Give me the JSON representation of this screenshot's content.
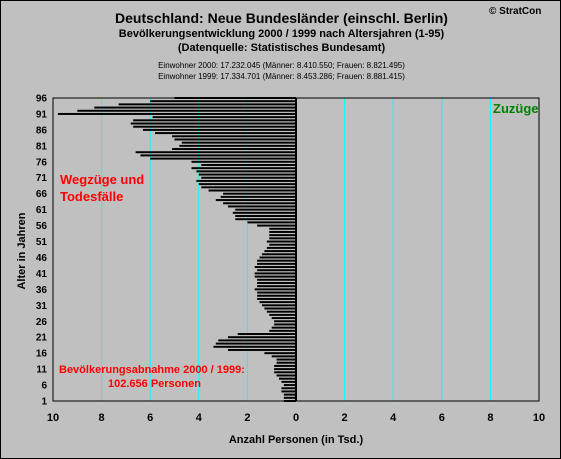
{
  "header": {
    "title": "Deutschland: Neue Bundesländer (einschl. Berlin)",
    "subtitle": "Bevölkerungsentwicklung 2000 / 1999  nach Altersjahren (1-95)",
    "source": "(Datenquelle: Statistisches Bundesamt)",
    "population_2000": "Einwohner 2000: 17.232.045  (Männer: 8.410.550; Frauen: 8.821.495)",
    "population_1999": "Einwohner 1999: 17.334.701  (Männer: 8.453.286; Frauen: 8.881.415)",
    "copyright": "© StratCon"
  },
  "annotations": {
    "left_line1": "Wegzüge und",
    "left_line2": "Todesfälle",
    "right": "Zuzüge",
    "decline_line1": "Bevölkerungsabnahme 2000 / 1999:",
    "decline_line2": "102.656 Personen"
  },
  "colors": {
    "background": "#c0c0c0",
    "bars": "#000000",
    "gridlines": "#00ffff",
    "annotation_red": "#ff0000",
    "annotation_green": "#008000"
  },
  "chart_data": {
    "type": "bar",
    "orientation": "horizontal",
    "xlabel": "Anzahl Personen (in Tsd.)",
    "ylabel": "Alter in Jahren",
    "xlim": [
      -10,
      10
    ],
    "ylim": [
      1,
      96
    ],
    "x_ticks": [
      10,
      8,
      6,
      4,
      2,
      0,
      2,
      4,
      6,
      8,
      10
    ],
    "y_ticks": [
      96,
      91,
      86,
      81,
      76,
      71,
      66,
      61,
      56,
      51,
      46,
      41,
      36,
      31,
      26,
      21,
      16,
      11,
      6,
      1
    ],
    "grid": true,
    "categories": [
      1,
      2,
      3,
      4,
      5,
      6,
      7,
      8,
      9,
      10,
      11,
      12,
      13,
      14,
      15,
      16,
      17,
      18,
      19,
      20,
      21,
      22,
      23,
      24,
      25,
      26,
      27,
      28,
      29,
      30,
      31,
      32,
      33,
      34,
      35,
      36,
      37,
      38,
      39,
      40,
      41,
      42,
      43,
      44,
      45,
      46,
      47,
      48,
      49,
      50,
      51,
      52,
      53,
      54,
      55,
      56,
      57,
      58,
      59,
      60,
      61,
      62,
      63,
      64,
      65,
      66,
      67,
      68,
      69,
      70,
      71,
      72,
      73,
      74,
      75,
      76,
      77,
      78,
      79,
      80,
      81,
      82,
      83,
      84,
      85,
      86,
      87,
      88,
      89,
      90,
      91,
      92,
      93,
      94,
      95,
      96
    ],
    "values": [
      -0.5,
      -0.5,
      -0.5,
      -0.6,
      -0.6,
      -0.5,
      -0.6,
      -0.7,
      -0.8,
      -0.9,
      -0.9,
      -0.9,
      -0.8,
      -0.8,
      -1.0,
      -1.3,
      -2.8,
      -3.4,
      -3.3,
      -3.2,
      -2.8,
      -2.4,
      -1.1,
      -1.0,
      -0.9,
      -0.9,
      -1.0,
      -1.1,
      -1.2,
      -1.3,
      -1.4,
      -1.5,
      -1.6,
      -1.6,
      -1.6,
      -1.7,
      -1.6,
      -1.6,
      -1.6,
      -1.7,
      -1.7,
      -1.6,
      -1.7,
      -1.6,
      -1.6,
      -1.5,
      -1.4,
      -1.3,
      -1.2,
      -1.1,
      -1.2,
      -1.1,
      -1.1,
      -1.1,
      -1.1,
      -1.6,
      -2.0,
      -2.5,
      -2.5,
      -2.6,
      -2.5,
      -2.8,
      -3.0,
      -3.3,
      -3.1,
      -3.0,
      -3.6,
      -3.9,
      -4.0,
      -4.1,
      -3.9,
      -4.0,
      -4.1,
      -4.3,
      -3.9,
      -4.3,
      -6.0,
      -6.4,
      -6.6,
      -5.1,
      -4.8,
      -4.7,
      -5.0,
      -5.1,
      -5.8,
      -6.3,
      -6.7,
      -6.8,
      -6.7,
      -5.9,
      -9.8,
      -9.0,
      -8.3,
      -7.3,
      -6.0,
      -5.0
    ]
  }
}
